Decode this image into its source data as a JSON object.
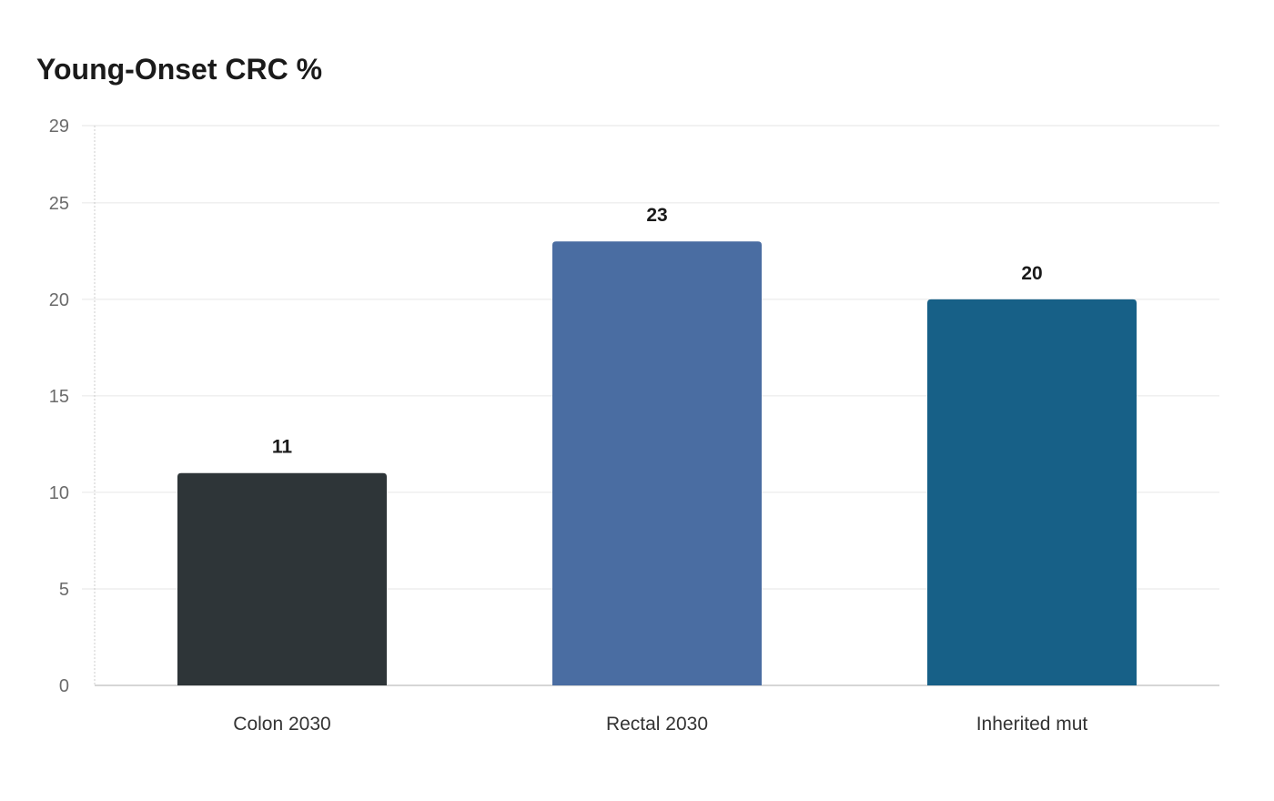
{
  "chart_data": {
    "type": "bar",
    "title": "Young-Onset CRC %",
    "xlabel": "",
    "ylabel": "",
    "categories": [
      "Colon 2030",
      "Rectal 2030",
      "Inherited mut"
    ],
    "values": [
      11,
      23,
      20
    ],
    "colors": [
      "#2e3538",
      "#4a6da2",
      "#176087"
    ],
    "ylim": [
      0,
      29
    ],
    "yticks": [
      0,
      5,
      10,
      15,
      20,
      25,
      29
    ],
    "grid": true,
    "legend": "none"
  }
}
